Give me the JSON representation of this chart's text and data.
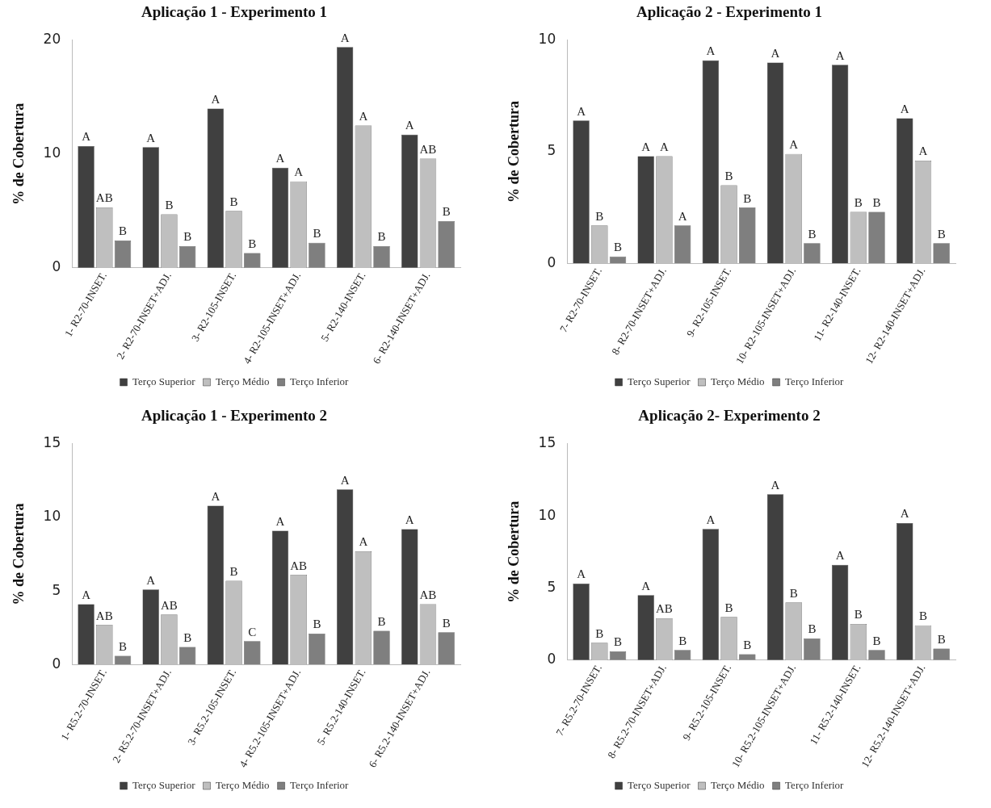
{
  "chart_data": [
    {
      "type": "bar",
      "title": "Aplicação 1 - Experimento 1",
      "ylabel": "% de Cobertura",
      "categories": [
        "1- R2-70-INSET.",
        "2- R2-70-INSET+ADJ.",
        "3- R2-105-INSET.",
        "4- R2-105-INSET+ADJ.",
        "5- R2-140-INSET.",
        "6- R2-140-INSET+ADJ."
      ],
      "series": [
        {
          "name": "Terço Superior",
          "color": "#404040",
          "values": [
            10.7,
            10.6,
            14.0,
            8.8,
            19.4,
            11.7
          ],
          "value_labels": [
            "A",
            "A",
            "A",
            "A",
            "A",
            "A"
          ]
        },
        {
          "name": "Terço Médio",
          "color": "#bfbfbf",
          "values": [
            5.3,
            4.7,
            5.0,
            7.6,
            12.5,
            9.6
          ],
          "value_labels": [
            "AB",
            "B",
            "B",
            "A",
            "A",
            "AB"
          ]
        },
        {
          "name": "Terço Inferior",
          "color": "#7f7f7f",
          "values": [
            2.4,
            1.9,
            1.3,
            2.2,
            1.9,
            4.1
          ],
          "value_labels": [
            "B",
            "B",
            "B",
            "B",
            "B",
            "B"
          ]
        }
      ],
      "ylim": [
        0,
        20
      ],
      "yticks": [
        0,
        10,
        20
      ],
      "legend": "bottom"
    },
    {
      "type": "bar",
      "title": "Aplicação 2 - Experimento 1",
      "ylabel": "% de Cobertura",
      "categories": [
        "7- R2-70-INSET.",
        "8- R2-70-INSET+ADJ.",
        "9- R2-105-INSET.",
        "10- R2-105-INSET+ADJ.",
        "11- R2-140-INSET.",
        "12- R2-140-INSET+ADJ."
      ],
      "series": [
        {
          "name": "Terço Superior",
          "color": "#404040",
          "values": [
            6.4,
            4.8,
            9.1,
            9.0,
            8.9,
            6.5
          ],
          "value_labels": [
            "A",
            "A",
            "A",
            "A",
            "A",
            "A"
          ]
        },
        {
          "name": "Terço Médio",
          "color": "#bfbfbf",
          "values": [
            1.7,
            4.8,
            3.5,
            4.9,
            2.3,
            4.6
          ],
          "value_labels": [
            "B",
            "A",
            "B",
            "A",
            "B",
            "A"
          ]
        },
        {
          "name": "Terço Inferior",
          "color": "#7f7f7f",
          "values": [
            0.3,
            1.7,
            2.5,
            0.9,
            2.3,
            0.9
          ],
          "value_labels": [
            "B",
            "A",
            "B",
            "B",
            "B",
            "B"
          ]
        }
      ],
      "ylim": [
        0,
        10
      ],
      "yticks": [
        0,
        5,
        10
      ],
      "legend": "bottom"
    },
    {
      "type": "bar",
      "title": "Aplicação 1 - Experimento 2",
      "ylabel": "% de Cobertura",
      "categories": [
        "1- R5.2-70-INSET.",
        "2- R5.2-70-INSET+ADJ.",
        "3- R5.2-105-INSET.",
        "4- R5.2-105-INSET+ADJ.",
        "5- R5.2-140-INSET.",
        "6- R5.2-140-INSET+ADJ."
      ],
      "series": [
        {
          "name": "Terço Superior",
          "color": "#404040",
          "values": [
            4.1,
            5.1,
            10.8,
            9.1,
            11.9,
            9.2
          ],
          "value_labels": [
            "A",
            "A",
            "A",
            "A",
            "A",
            "A"
          ]
        },
        {
          "name": "Terço Médio",
          "color": "#bfbfbf",
          "values": [
            2.7,
            3.4,
            5.7,
            6.1,
            7.7,
            4.1
          ],
          "value_labels": [
            "AB",
            "AB",
            "B",
            "AB",
            "A",
            "AB"
          ]
        },
        {
          "name": "Terço Inferior",
          "color": "#7f7f7f",
          "values": [
            0.6,
            1.2,
            1.6,
            2.1,
            2.3,
            2.2
          ],
          "value_labels": [
            "B",
            "B",
            "C",
            "B",
            "B",
            "B"
          ]
        }
      ],
      "ylim": [
        0,
        15
      ],
      "yticks": [
        0,
        5,
        10,
        15
      ],
      "legend": "bottom"
    },
    {
      "type": "bar",
      "title": "Aplicação 2- Experimento 2",
      "ylabel": "% de Cobertura",
      "categories": [
        "7- R5.2-70-INSET.",
        "8- R5.2-70-INSET+ADJ.",
        "9- R5.2-105-INSET.",
        "10- R5.2-105-INSET+ADJ.",
        "11- R5.2-140-INSET.",
        "12- R5.2-140-INSET+ADJ."
      ],
      "series": [
        {
          "name": "Terço Superior",
          "color": "#404040",
          "values": [
            5.3,
            4.5,
            9.1,
            11.5,
            6.6,
            9.5
          ],
          "value_labels": [
            "A",
            "A",
            "A",
            "A",
            "A",
            "A"
          ]
        },
        {
          "name": "Terço Médio",
          "color": "#bfbfbf",
          "values": [
            1.2,
            2.9,
            3.0,
            4.0,
            2.5,
            2.4
          ],
          "value_labels": [
            "B",
            "AB",
            "B",
            "B",
            "B",
            "B"
          ]
        },
        {
          "name": "Terço Inferior",
          "color": "#7f7f7f",
          "values": [
            0.6,
            0.7,
            0.4,
            1.5,
            0.7,
            0.8
          ],
          "value_labels": [
            "B",
            "B",
            "B",
            "B",
            "B",
            "B"
          ]
        }
      ],
      "ylim": [
        0,
        15
      ],
      "yticks": [
        0,
        5,
        10,
        15
      ],
      "legend": "bottom"
    }
  ]
}
